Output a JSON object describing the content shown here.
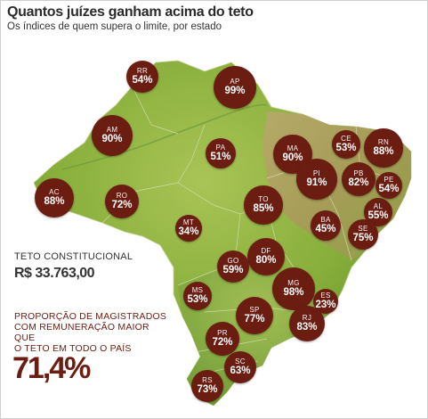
{
  "header": {
    "title": "Quantos juízes ganham acima do teto",
    "subtitle": "Os índices de quem supera o limite, por estado"
  },
  "info": {
    "teto_label": "TETO CONSTITUCIONAL",
    "teto_value": "R$ 33.763,00",
    "prop_lines": [
      "PROPORÇÃO DE MAGISTRADOS",
      "COM REMUNERAÇÃO MAIOR QUE",
      "O TETO EM TODO O PAÍS"
    ],
    "prop_value": "71,4%"
  },
  "colors": {
    "bubble": "#6b1d12",
    "map_green": "#8fb33e",
    "map_dark_green": "#4f7f2a",
    "map_brown": "#b8a36a",
    "ocean": "#ffffff"
  },
  "states": [
    {
      "uf": "RR",
      "pct": "54%"
    },
    {
      "uf": "AP",
      "pct": "99%"
    },
    {
      "uf": "AM",
      "pct": "90%"
    },
    {
      "uf": "PA",
      "pct": "51%"
    },
    {
      "uf": "MA",
      "pct": "90%"
    },
    {
      "uf": "CE",
      "pct": "53%"
    },
    {
      "uf": "RN",
      "pct": "88%"
    },
    {
      "uf": "PI",
      "pct": "91%"
    },
    {
      "uf": "PB",
      "pct": "82%"
    },
    {
      "uf": "PE",
      "pct": "54%"
    },
    {
      "uf": "AC",
      "pct": "88%"
    },
    {
      "uf": "RO",
      "pct": "72%"
    },
    {
      "uf": "TO",
      "pct": "85%"
    },
    {
      "uf": "AL",
      "pct": "55%"
    },
    {
      "uf": "BA",
      "pct": "45%"
    },
    {
      "uf": "SE",
      "pct": "75%"
    },
    {
      "uf": "MT",
      "pct": "34%"
    },
    {
      "uf": "DF",
      "pct": "80%"
    },
    {
      "uf": "GO",
      "pct": "59%"
    },
    {
      "uf": "MG",
      "pct": "98%"
    },
    {
      "uf": "ES",
      "pct": "23%"
    },
    {
      "uf": "MS",
      "pct": "53%"
    },
    {
      "uf": "SP",
      "pct": "77%"
    },
    {
      "uf": "RJ",
      "pct": "83%"
    },
    {
      "uf": "PR",
      "pct": "72%"
    },
    {
      "uf": "SC",
      "pct": "63%"
    },
    {
      "uf": "RS",
      "pct": "73%"
    }
  ]
}
